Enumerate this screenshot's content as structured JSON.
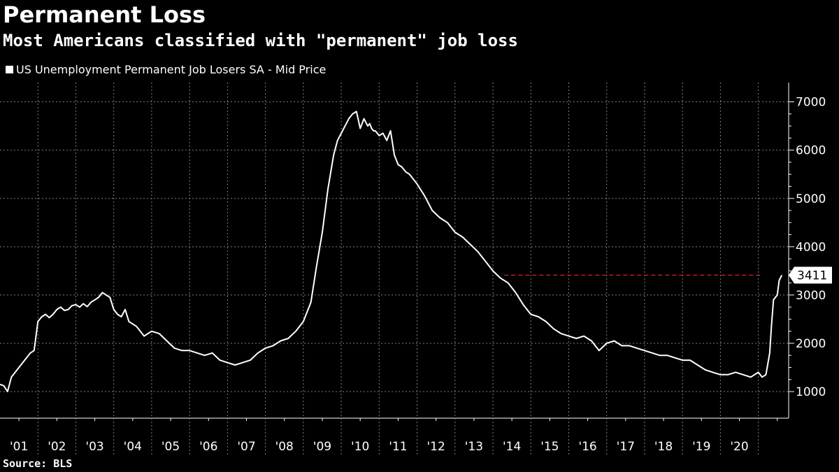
{
  "title": "Permanent Loss",
  "subtitle": "Most Americans classified with \"permanent\" job loss",
  "source": "Source: BLS",
  "colors": {
    "background": "#000000",
    "line": "#ffffff",
    "reference_line": "#e0202a",
    "grid": "#808080"
  },
  "chart_data": {
    "type": "line",
    "title": "Permanent Loss",
    "subtitle": "Most Americans classified with \"permanent\" job loss",
    "xlabel": "",
    "ylabel": "",
    "ylim": [
      450,
      7400
    ],
    "xlim": [
      2000.0,
      2020.8
    ],
    "grid": true,
    "legend": "top-left",
    "y_axis_side": "right",
    "yticks": [
      1000,
      2000,
      3000,
      4000,
      5000,
      6000,
      7000
    ],
    "xtick_labels": [
      "'01",
      "'02",
      "'03",
      "'04",
      "'05",
      "'06",
      "'07",
      "'08",
      "'09",
      "'10",
      "'11",
      "'12",
      "'13",
      "'14",
      "'15",
      "'16",
      "'17",
      "'18",
      "'19",
      "'20"
    ],
    "last_value_label": "3411",
    "reference_line": {
      "y": 3411,
      "from_x": 2013.3,
      "style": "dashed"
    },
    "series": [
      {
        "name": "US Unemployment Permanent Job Losers SA - Mid Price",
        "x": [
          2000.0,
          2000.1,
          2000.2,
          2000.3,
          2000.4,
          2000.5,
          2000.6,
          2000.8,
          2000.9,
          2001.0,
          2001.1,
          2001.2,
          2001.3,
          2001.4,
          2001.5,
          2001.6,
          2001.7,
          2001.8,
          2001.9,
          2002.0,
          2002.1,
          2002.2,
          2002.3,
          2002.4,
          2002.5,
          2002.6,
          2002.7,
          2002.8,
          2002.9,
          2003.0,
          2003.1,
          2003.2,
          2003.3,
          2003.4,
          2003.5,
          2003.6,
          2003.7,
          2003.8,
          2003.9,
          2004.0,
          2004.2,
          2004.4,
          2004.6,
          2004.8,
          2005.0,
          2005.2,
          2005.4,
          2005.6,
          2005.8,
          2006.0,
          2006.2,
          2006.4,
          2006.6,
          2006.8,
          2007.0,
          2007.2,
          2007.4,
          2007.6,
          2007.8,
          2008.0,
          2008.2,
          2008.35,
          2008.5,
          2008.65,
          2008.8,
          2008.9,
          2009.0,
          2009.1,
          2009.2,
          2009.3,
          2009.4,
          2009.5,
          2009.6,
          2009.7,
          2009.75,
          2009.8,
          2009.85,
          2009.9,
          2010.0,
          2010.1,
          2010.2,
          2010.3,
          2010.4,
          2010.45,
          2010.5,
          2010.6,
          2010.7,
          2010.8,
          2011.0,
          2011.2,
          2011.4,
          2011.6,
          2011.8,
          2012.0,
          2012.2,
          2012.4,
          2012.6,
          2012.8,
          2013.0,
          2013.2,
          2013.4,
          2013.6,
          2013.8,
          2014.0,
          2014.2,
          2014.4,
          2014.6,
          2014.8,
          2015.0,
          2015.2,
          2015.4,
          2015.6,
          2015.8,
          2016.0,
          2016.2,
          2016.4,
          2016.6,
          2016.8,
          2017.0,
          2017.2,
          2017.4,
          2017.6,
          2017.8,
          2018.0,
          2018.2,
          2018.4,
          2018.6,
          2018.8,
          2019.0,
          2019.2,
          2019.4,
          2019.6,
          2019.8,
          2019.9,
          2020.0,
          2020.1,
          2020.2,
          2020.3,
          2020.35,
          2020.4,
          2020.5,
          2020.55,
          2020.62
        ],
        "values": [
          1150,
          1120,
          1000,
          1300,
          1400,
          1500,
          1600,
          1800,
          1850,
          2450,
          2550,
          2600,
          2530,
          2600,
          2700,
          2750,
          2680,
          2700,
          2780,
          2800,
          2750,
          2820,
          2760,
          2850,
          2900,
          2950,
          3050,
          3000,
          2950,
          2700,
          2600,
          2550,
          2700,
          2450,
          2400,
          2350,
          2250,
          2150,
          2200,
          2250,
          2200,
          2050,
          1900,
          1850,
          1850,
          1800,
          1750,
          1800,
          1650,
          1600,
          1550,
          1600,
          1650,
          1800,
          1900,
          1950,
          2050,
          2100,
          2250,
          2450,
          2850,
          3600,
          4300,
          5200,
          5900,
          6200,
          6350,
          6500,
          6650,
          6750,
          6800,
          6450,
          6650,
          6500,
          6550,
          6450,
          6400,
          6400,
          6300,
          6350,
          6200,
          6400,
          5900,
          5800,
          5700,
          5650,
          5550,
          5500,
          5300,
          5050,
          4750,
          4600,
          4500,
          4300,
          4200,
          4050,
          3900,
          3700,
          3500,
          3350,
          3250,
          3050,
          2800,
          2600,
          2550,
          2450,
          2300,
          2200,
          2150,
          2100,
          2150,
          2050,
          1850,
          2000,
          2050,
          1950,
          1950,
          1900,
          1850,
          1800,
          1750,
          1750,
          1700,
          1650,
          1650,
          1550,
          1450,
          1400,
          1350,
          1350,
          1400,
          1350,
          1300,
          1350,
          1400,
          1300,
          1350,
          1800,
          2400,
          2900,
          3000,
          3300,
          3411
        ]
      }
    ]
  }
}
